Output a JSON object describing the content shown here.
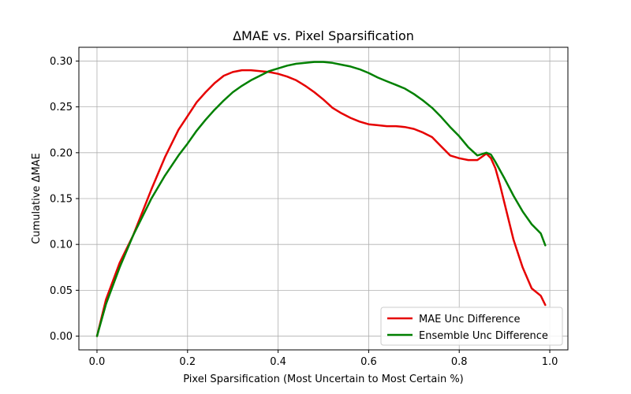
{
  "chart_data": {
    "type": "line",
    "title": "ΔMAE vs. Pixel Sparsification",
    "xlabel": "Pixel Sparsification (Most Uncertain to Most Certain %)",
    "ylabel": "Cumulative ΔMAE",
    "xlim": [
      -0.04,
      1.04
    ],
    "ylim": [
      -0.015,
      0.315
    ],
    "xticks": [
      0.0,
      0.2,
      0.4,
      0.6,
      0.8,
      1.0
    ],
    "xtick_labels": [
      "0.0",
      "0.2",
      "0.4",
      "0.6",
      "0.8",
      "1.0"
    ],
    "yticks": [
      0.0,
      0.05,
      0.1,
      0.15,
      0.2,
      0.25,
      0.3
    ],
    "ytick_labels": [
      "0.00",
      "0.05",
      "0.10",
      "0.15",
      "0.20",
      "0.25",
      "0.30"
    ],
    "grid": true,
    "legend_position": "lower-right",
    "series": [
      {
        "name": "MAE Unc Difference",
        "color": "#e60000",
        "x": [
          0.0,
          0.02,
          0.05,
          0.08,
          0.1,
          0.12,
          0.15,
          0.18,
          0.2,
          0.22,
          0.24,
          0.26,
          0.28,
          0.3,
          0.32,
          0.34,
          0.36,
          0.38,
          0.4,
          0.42,
          0.44,
          0.46,
          0.48,
          0.5,
          0.52,
          0.54,
          0.56,
          0.58,
          0.6,
          0.62,
          0.64,
          0.66,
          0.68,
          0.7,
          0.72,
          0.74,
          0.76,
          0.78,
          0.8,
          0.82,
          0.84,
          0.86,
          0.87,
          0.88,
          0.89,
          0.9,
          0.92,
          0.94,
          0.96,
          0.98,
          0.99
        ],
        "y": [
          0.0,
          0.04,
          0.08,
          0.11,
          0.135,
          0.16,
          0.195,
          0.225,
          0.24,
          0.255,
          0.266,
          0.276,
          0.284,
          0.288,
          0.29,
          0.29,
          0.289,
          0.288,
          0.286,
          0.283,
          0.279,
          0.273,
          0.266,
          0.258,
          0.249,
          0.243,
          0.238,
          0.234,
          0.231,
          0.23,
          0.229,
          0.229,
          0.228,
          0.226,
          0.222,
          0.217,
          0.207,
          0.197,
          0.194,
          0.192,
          0.192,
          0.199,
          0.194,
          0.183,
          0.165,
          0.145,
          0.105,
          0.075,
          0.052,
          0.044,
          0.034
        ]
      },
      {
        "name": "Ensemble Unc Difference",
        "color": "#008000",
        "x": [
          0.0,
          0.02,
          0.05,
          0.08,
          0.1,
          0.12,
          0.15,
          0.18,
          0.2,
          0.22,
          0.24,
          0.26,
          0.28,
          0.3,
          0.32,
          0.34,
          0.36,
          0.38,
          0.4,
          0.42,
          0.44,
          0.46,
          0.48,
          0.5,
          0.52,
          0.54,
          0.56,
          0.58,
          0.6,
          0.62,
          0.64,
          0.66,
          0.68,
          0.7,
          0.72,
          0.74,
          0.76,
          0.78,
          0.8,
          0.82,
          0.84,
          0.86,
          0.87,
          0.88,
          0.9,
          0.92,
          0.94,
          0.96,
          0.98,
          0.99
        ],
        "y": [
          0.0,
          0.035,
          0.075,
          0.11,
          0.13,
          0.15,
          0.175,
          0.197,
          0.21,
          0.224,
          0.236,
          0.247,
          0.257,
          0.266,
          0.273,
          0.279,
          0.284,
          0.289,
          0.292,
          0.295,
          0.297,
          0.298,
          0.299,
          0.299,
          0.298,
          0.296,
          0.294,
          0.291,
          0.287,
          0.282,
          0.278,
          0.274,
          0.27,
          0.264,
          0.257,
          0.249,
          0.239,
          0.228,
          0.218,
          0.206,
          0.197,
          0.2,
          0.198,
          0.19,
          0.172,
          0.153,
          0.136,
          0.122,
          0.112,
          0.099
        ]
      }
    ]
  }
}
